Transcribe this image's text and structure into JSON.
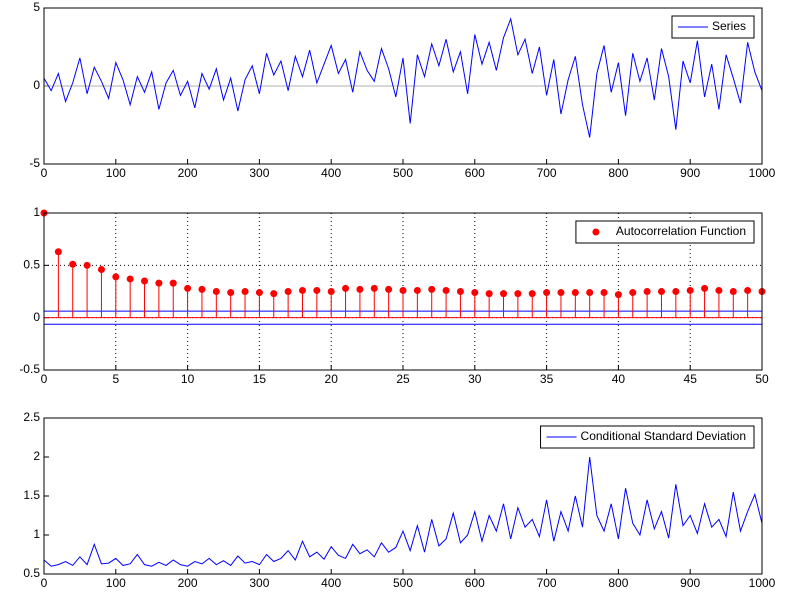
{
  "chart_data": [
    {
      "type": "line",
      "legend": "upper right",
      "grid": false,
      "xlim": [
        0,
        1000
      ],
      "ylim": [
        -5,
        5
      ],
      "xticks": [
        0,
        100,
        200,
        300,
        400,
        500,
        600,
        700,
        800,
        900,
        1000
      ],
      "yticks": [
        -5,
        0,
        5
      ],
      "x": [
        0,
        10,
        20,
        30,
        40,
        50,
        60,
        70,
        80,
        90,
        100,
        110,
        120,
        130,
        140,
        150,
        160,
        170,
        180,
        190,
        200,
        210,
        220,
        230,
        240,
        250,
        260,
        270,
        280,
        290,
        300,
        310,
        320,
        330,
        340,
        350,
        360,
        370,
        380,
        390,
        400,
        410,
        420,
        430,
        440,
        450,
        460,
        470,
        480,
        490,
        500,
        510,
        520,
        530,
        540,
        550,
        560,
        570,
        580,
        590,
        600,
        610,
        620,
        630,
        640,
        650,
        660,
        670,
        680,
        690,
        700,
        710,
        720,
        730,
        740,
        750,
        760,
        770,
        780,
        790,
        800,
        810,
        820,
        830,
        840,
        850,
        860,
        870,
        880,
        890,
        900,
        910,
        920,
        930,
        940,
        950,
        960,
        970,
        980,
        990,
        1000
      ],
      "series": [
        {
          "name": "Series",
          "color": "#0000ff",
          "values": [
            0.5,
            -0.3,
            0.8,
            -1.0,
            0.2,
            1.8,
            -0.5,
            1.2,
            0.3,
            -0.8,
            1.5,
            0.4,
            -1.2,
            0.6,
            -0.4,
            0.9,
            -1.5,
            0.2,
            1.0,
            -0.6,
            0.3,
            -1.4,
            0.8,
            -0.2,
            1.1,
            -0.9,
            0.5,
            -1.6,
            0.4,
            1.3,
            -0.5,
            2.1,
            0.7,
            1.6,
            -0.3,
            1.9,
            0.6,
            2.3,
            0.2,
            1.4,
            2.6,
            0.8,
            1.7,
            -0.4,
            2.2,
            1.0,
            0.3,
            2.4,
            1.1,
            -0.7,
            1.8,
            -2.4,
            2.0,
            0.6,
            2.7,
            1.3,
            3.0,
            0.9,
            2.2,
            -0.5,
            3.3,
            1.4,
            2.8,
            1.0,
            3.1,
            4.3,
            2.0,
            3.0,
            0.8,
            2.5,
            -0.6,
            1.7,
            -1.8,
            0.4,
            1.9,
            -1.2,
            -3.3,
            0.8,
            2.6,
            -0.4,
            1.5,
            -1.9,
            2.1,
            0.3,
            1.8,
            -0.9,
            2.4,
            0.6,
            -2.8,
            1.6,
            0.2,
            2.9,
            -0.7,
            1.4,
            -1.5,
            2.0,
            0.5,
            -1.1,
            2.8,
            0.9,
            -0.3
          ]
        }
      ]
    },
    {
      "type": "stem",
      "legend": "upper right",
      "grid": true,
      "xlim": [
        0,
        50
      ],
      "ylim": [
        -0.5,
        1
      ],
      "xticks": [
        0,
        5,
        10,
        15,
        20,
        25,
        30,
        35,
        40,
        45,
        50
      ],
      "yticks": [
        -0.5,
        0,
        0.5,
        1
      ],
      "x": [
        0,
        1,
        2,
        3,
        4,
        5,
        6,
        7,
        8,
        9,
        10,
        11,
        12,
        13,
        14,
        15,
        16,
        17,
        18,
        19,
        20,
        21,
        22,
        23,
        24,
        25,
        26,
        27,
        28,
        29,
        30,
        31,
        32,
        33,
        34,
        35,
        36,
        37,
        38,
        39,
        40,
        41,
        42,
        43,
        44,
        45,
        46,
        47,
        48,
        49,
        50
      ],
      "bounds": [
        0.063,
        -0.063
      ],
      "bounds_color": "#0000ff",
      "series": [
        {
          "name": "Autocorrelation Function",
          "color": "#ff0000",
          "values": [
            1,
            0.63,
            0.51,
            0.5,
            0.46,
            0.39,
            0.37,
            0.35,
            0.33,
            0.33,
            0.28,
            0.27,
            0.25,
            0.24,
            0.25,
            0.24,
            0.23,
            0.25,
            0.26,
            0.26,
            0.25,
            0.28,
            0.27,
            0.28,
            0.27,
            0.26,
            0.26,
            0.27,
            0.26,
            0.25,
            0.24,
            0.23,
            0.23,
            0.23,
            0.23,
            0.24,
            0.24,
            0.24,
            0.24,
            0.24,
            0.22,
            0.24,
            0.25,
            0.25,
            0.25,
            0.26,
            0.28,
            0.26,
            0.25,
            0.26,
            0.25
          ]
        }
      ]
    },
    {
      "type": "line",
      "legend": "upper right",
      "grid": false,
      "xlim": [
        0,
        1000
      ],
      "ylim": [
        0.5,
        2.5
      ],
      "xticks": [
        0,
        100,
        200,
        300,
        400,
        500,
        600,
        700,
        800,
        900,
        1000
      ],
      "yticks": [
        0.5,
        1,
        1.5,
        2,
        2.5
      ],
      "x": [
        0,
        10,
        20,
        30,
        40,
        50,
        60,
        70,
        80,
        90,
        100,
        110,
        120,
        130,
        140,
        150,
        160,
        170,
        180,
        190,
        200,
        210,
        220,
        230,
        240,
        250,
        260,
        270,
        280,
        290,
        300,
        310,
        320,
        330,
        340,
        350,
        360,
        370,
        380,
        390,
        400,
        410,
        420,
        430,
        440,
        450,
        460,
        470,
        480,
        490,
        500,
        510,
        520,
        530,
        540,
        550,
        560,
        570,
        580,
        590,
        600,
        610,
        620,
        630,
        640,
        650,
        660,
        670,
        680,
        690,
        700,
        710,
        720,
        730,
        740,
        750,
        760,
        770,
        780,
        790,
        800,
        810,
        820,
        830,
        840,
        850,
        860,
        870,
        880,
        890,
        900,
        910,
        920,
        930,
        940,
        950,
        960,
        970,
        980,
        990,
        1000
      ],
      "series": [
        {
          "name": "Conditional Standard Deviation",
          "color": "#0000ff",
          "values": [
            0.68,
            0.6,
            0.62,
            0.66,
            0.61,
            0.72,
            0.62,
            0.88,
            0.63,
            0.64,
            0.7,
            0.61,
            0.63,
            0.75,
            0.62,
            0.6,
            0.65,
            0.61,
            0.68,
            0.62,
            0.6,
            0.66,
            0.63,
            0.7,
            0.62,
            0.67,
            0.61,
            0.73,
            0.64,
            0.66,
            0.62,
            0.75,
            0.66,
            0.7,
            0.8,
            0.68,
            0.92,
            0.72,
            0.78,
            0.69,
            0.85,
            0.74,
            0.7,
            0.88,
            0.76,
            0.81,
            0.72,
            0.9,
            0.78,
            0.84,
            1.05,
            0.8,
            1.12,
            0.78,
            1.2,
            0.86,
            0.95,
            1.28,
            0.9,
            1.0,
            1.3,
            0.92,
            1.25,
            1.05,
            1.4,
            0.95,
            1.35,
            1.1,
            1.2,
            0.98,
            1.45,
            0.92,
            1.3,
            1.05,
            1.5,
            1.1,
            2.0,
            1.25,
            1.05,
            1.4,
            0.95,
            1.6,
            1.15,
            1.0,
            1.45,
            1.08,
            1.3,
            0.96,
            1.65,
            1.12,
            1.25,
            1.02,
            1.4,
            1.1,
            1.2,
            0.98,
            1.55,
            1.05,
            1.3,
            1.52,
            1.15
          ]
        }
      ]
    }
  ]
}
